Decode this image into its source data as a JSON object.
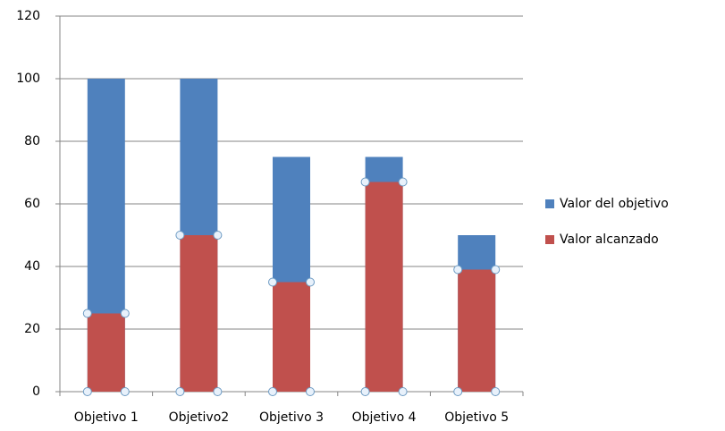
{
  "chart_data": {
    "type": "bar",
    "categories": [
      "Objetivo 1",
      "Objetivo2",
      "Objetivo 3",
      "Objetivo 4",
      "Objetivo 5"
    ],
    "series": [
      {
        "name": "Valor del objetivo",
        "color": "#4f81bd",
        "values": [
          100,
          100,
          75,
          75,
          50
        ]
      },
      {
        "name": "Valor alcanzado",
        "color": "#c0504d",
        "values": [
          25,
          50,
          35,
          67,
          39
        ]
      }
    ],
    "ylim": [
      0,
      120
    ],
    "yticks": [
      0,
      20,
      40,
      60,
      80,
      100,
      120
    ],
    "grid": true,
    "legend": "right"
  }
}
